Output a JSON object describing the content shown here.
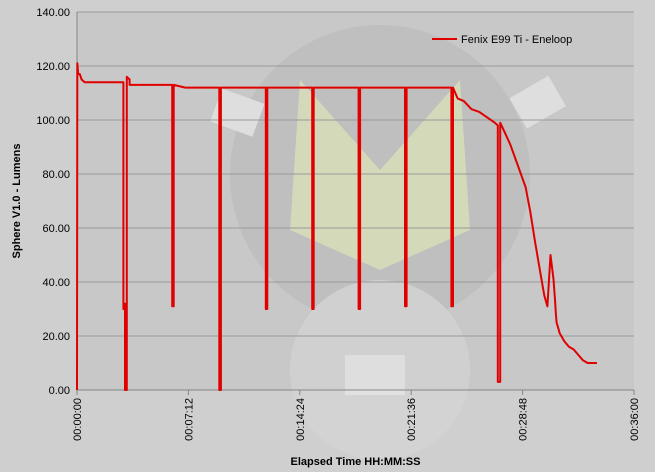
{
  "chart_data": {
    "type": "line",
    "xlabel": "Elapsed Time HH:MM:SS",
    "ylabel": "Sphere V1.0 - Lumens",
    "xlim": [
      0,
      36
    ],
    "ylim": [
      0,
      140
    ],
    "x_unit": "minutes",
    "x_ticks": [
      "00:00:00",
      "00:07:12",
      "00:14:24",
      "00:21:36",
      "00:28:48",
      "00:36:00"
    ],
    "y_ticks": [
      "0.00",
      "20.00",
      "40.00",
      "60.00",
      "80.00",
      "100.00",
      "120.00",
      "140.00"
    ],
    "grid": "horizontal",
    "legend_position": "top-right",
    "colors": {
      "series": "#e00000",
      "gridline": "#9a9a9a",
      "background": "#cfcfcf",
      "plot_background": "#c8c8c8"
    },
    "series": [
      {
        "name": "Fenix E99 Ti - Eneloop",
        "x": [
          0.0,
          0.02,
          0.08,
          0.18,
          0.3,
          0.5,
          0.8,
          1.2,
          2.0,
          3.0,
          3.0,
          3.05,
          3.05,
          3.1,
          3.1,
          3.22,
          3.22,
          3.4,
          3.4,
          3.6,
          4.0,
          4.6,
          5.0,
          5.5,
          6.0,
          6.15,
          6.15,
          6.25,
          6.25,
          7.0,
          8.0,
          9.0,
          9.2,
          9.2,
          9.3,
          9.3,
          10.0,
          11.0,
          12.0,
          12.2,
          12.2,
          12.3,
          12.3,
          13.0,
          14.0,
          15.0,
          15.2,
          15.2,
          15.3,
          15.3,
          16.0,
          17.0,
          18.0,
          18.2,
          18.2,
          18.3,
          18.3,
          19.0,
          20.0,
          21.0,
          21.2,
          21.2,
          21.3,
          21.3,
          22.0,
          23.0,
          24.0,
          24.2,
          24.2,
          24.3,
          24.3,
          24.6,
          25.0,
          25.5,
          26.0,
          26.5,
          27.0,
          27.2,
          27.2,
          27.35,
          27.35,
          27.6,
          28.0,
          28.5,
          29.0,
          29.3,
          29.6,
          29.9,
          30.2,
          30.4,
          30.6,
          30.8,
          30.9,
          30.95,
          31.0,
          31.1,
          31.2,
          31.5,
          31.8,
          32.1,
          32.4,
          32.7,
          33.0,
          33.3,
          33.6
        ],
        "y": [
          0.0,
          121.0,
          117.0,
          117.0,
          115.0,
          114.0,
          114.0,
          114.0,
          114.0,
          114.0,
          30.0,
          30.0,
          32.0,
          32.0,
          0.0,
          0.0,
          116.0,
          115.0,
          113.0,
          113.0,
          113.0,
          113.0,
          113.0,
          113.0,
          113.0,
          113.0,
          31.0,
          31.0,
          113.0,
          112.0,
          112.0,
          112.0,
          112.0,
          0.0,
          0.0,
          112.0,
          112.0,
          112.0,
          112.0,
          112.0,
          30.0,
          30.0,
          112.0,
          112.0,
          112.0,
          112.0,
          112.0,
          30.0,
          30.0,
          112.0,
          112.0,
          112.0,
          112.0,
          112.0,
          30.0,
          30.0,
          112.0,
          112.0,
          112.0,
          112.0,
          112.0,
          31.0,
          31.0,
          112.0,
          112.0,
          112.0,
          112.0,
          112.0,
          31.0,
          31.0,
          112.0,
          108.0,
          107.0,
          104.0,
          103.0,
          101.0,
          99.0,
          98.0,
          3.0,
          3.0,
          99.0,
          96.0,
          91.0,
          83.0,
          75.0,
          66.0,
          55.0,
          45.0,
          35.0,
          31.0,
          50.0,
          41.0,
          33.0,
          28.0,
          25.0,
          23.0,
          21.0,
          18.0,
          16.0,
          15.0,
          13.0,
          11.0,
          10.0,
          10.0,
          10.0
        ]
      }
    ]
  }
}
